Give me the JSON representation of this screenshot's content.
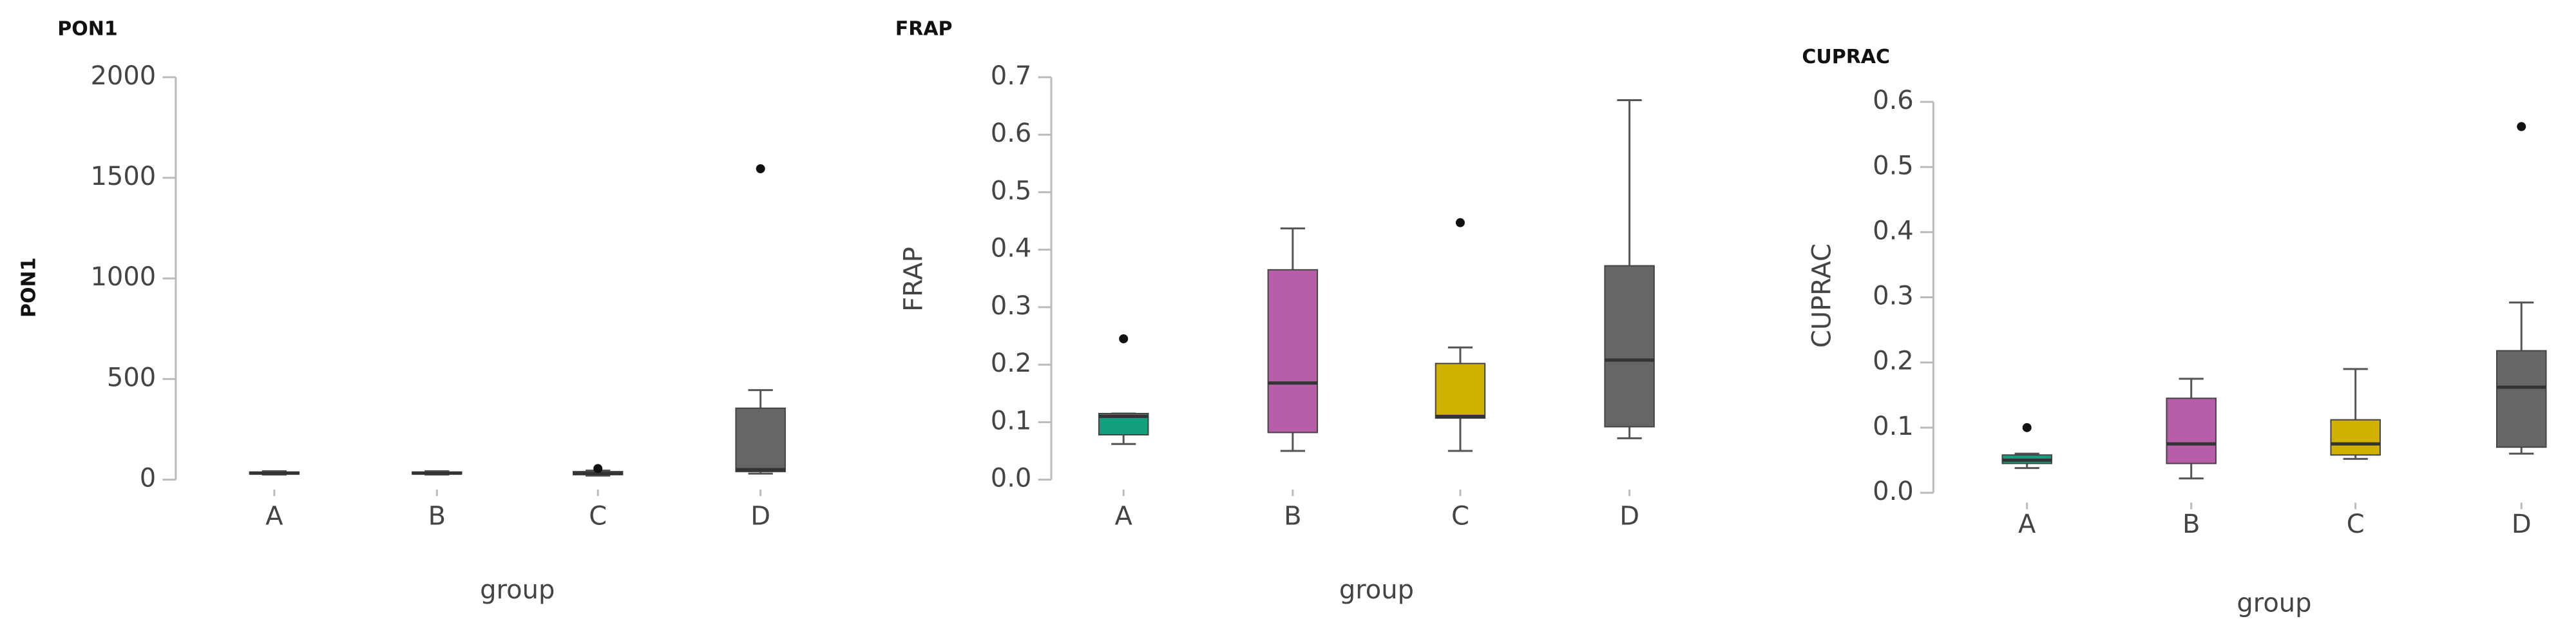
{
  "chart_data": [
    {
      "type": "box",
      "title": "PON1",
      "y_label": "PON1",
      "x_label": "group",
      "categories": [
        "A",
        "B",
        "C",
        "D"
      ],
      "colors": [
        "#1b7e6a",
        "#8a4a7e",
        "#6e6420",
        "#666666"
      ],
      "boxes": [
        {
          "min": 25,
          "q1": 28,
          "median": 32,
          "q3": 38,
          "max": 42,
          "outliers": []
        },
        {
          "min": 25,
          "q1": 28,
          "median": 32,
          "q3": 38,
          "max": 42,
          "outliers": []
        },
        {
          "min": 20,
          "q1": 25,
          "median": 30,
          "q3": 40,
          "max": 45,
          "outliers": [
            55
          ]
        },
        {
          "min": 30,
          "q1": 40,
          "median": 50,
          "q3": 355,
          "max": 445,
          "outliers": [
            1545
          ]
        }
      ],
      "ylim": [
        0,
        2000
      ],
      "yticks": [
        0,
        500,
        1000,
        1500,
        2000
      ]
    },
    {
      "type": "box",
      "title": "FRAP",
      "y_label": "FRAP",
      "x_label": "group",
      "categories": [
        "A",
        "B",
        "C",
        "D"
      ],
      "colors": [
        "#13a07e",
        "#b75ea8",
        "#d1b100",
        "#666666"
      ],
      "boxes": [
        {
          "min": 0.062,
          "q1": 0.078,
          "median": 0.11,
          "q3": 0.115,
          "max": 0.115,
          "outliers": [
            0.245
          ]
        },
        {
          "min": 0.05,
          "q1": 0.082,
          "median": 0.168,
          "q3": 0.365,
          "max": 0.437,
          "outliers": []
        },
        {
          "min": 0.05,
          "q1": 0.107,
          "median": 0.11,
          "q3": 0.202,
          "max": 0.23,
          "outliers": [
            0.447
          ]
        },
        {
          "min": 0.072,
          "q1": 0.092,
          "median": 0.208,
          "q3": 0.372,
          "max": 0.66,
          "outliers": []
        }
      ],
      "ylim": [
        0,
        0.7
      ],
      "yticks": [
        {
          "value": 0,
          "label": "0.0"
        },
        0.1,
        0.2,
        0.3,
        0.4,
        0.5,
        0.6,
        0.7
      ]
    },
    {
      "type": "box",
      "title": "CUPRAC",
      "y_label": "CUPRAC",
      "x_label": "group",
      "categories": [
        "A",
        "B",
        "C",
        "D"
      ],
      "colors": [
        "#13a07e",
        "#b75ea8",
        "#d1b100",
        "#666666"
      ],
      "boxes": [
        {
          "min": 0.038,
          "q1": 0.045,
          "median": 0.05,
          "q3": 0.058,
          "max": 0.06,
          "outliers": [
            0.1
          ]
        },
        {
          "min": 0.022,
          "q1": 0.045,
          "median": 0.075,
          "q3": 0.145,
          "max": 0.175,
          "outliers": []
        },
        {
          "min": 0.052,
          "q1": 0.058,
          "median": 0.075,
          "q3": 0.112,
          "max": 0.19,
          "outliers": []
        },
        {
          "min": 0.06,
          "q1": 0.07,
          "median": 0.162,
          "q3": 0.218,
          "max": 0.292,
          "outliers": [
            0.562
          ]
        }
      ],
      "ylim": [
        0,
        0.6
      ],
      "yticks": [
        {
          "value": 0,
          "label": "0.0"
        },
        0.1,
        0.2,
        0.3,
        0.4,
        0.5,
        0.6
      ]
    }
  ]
}
